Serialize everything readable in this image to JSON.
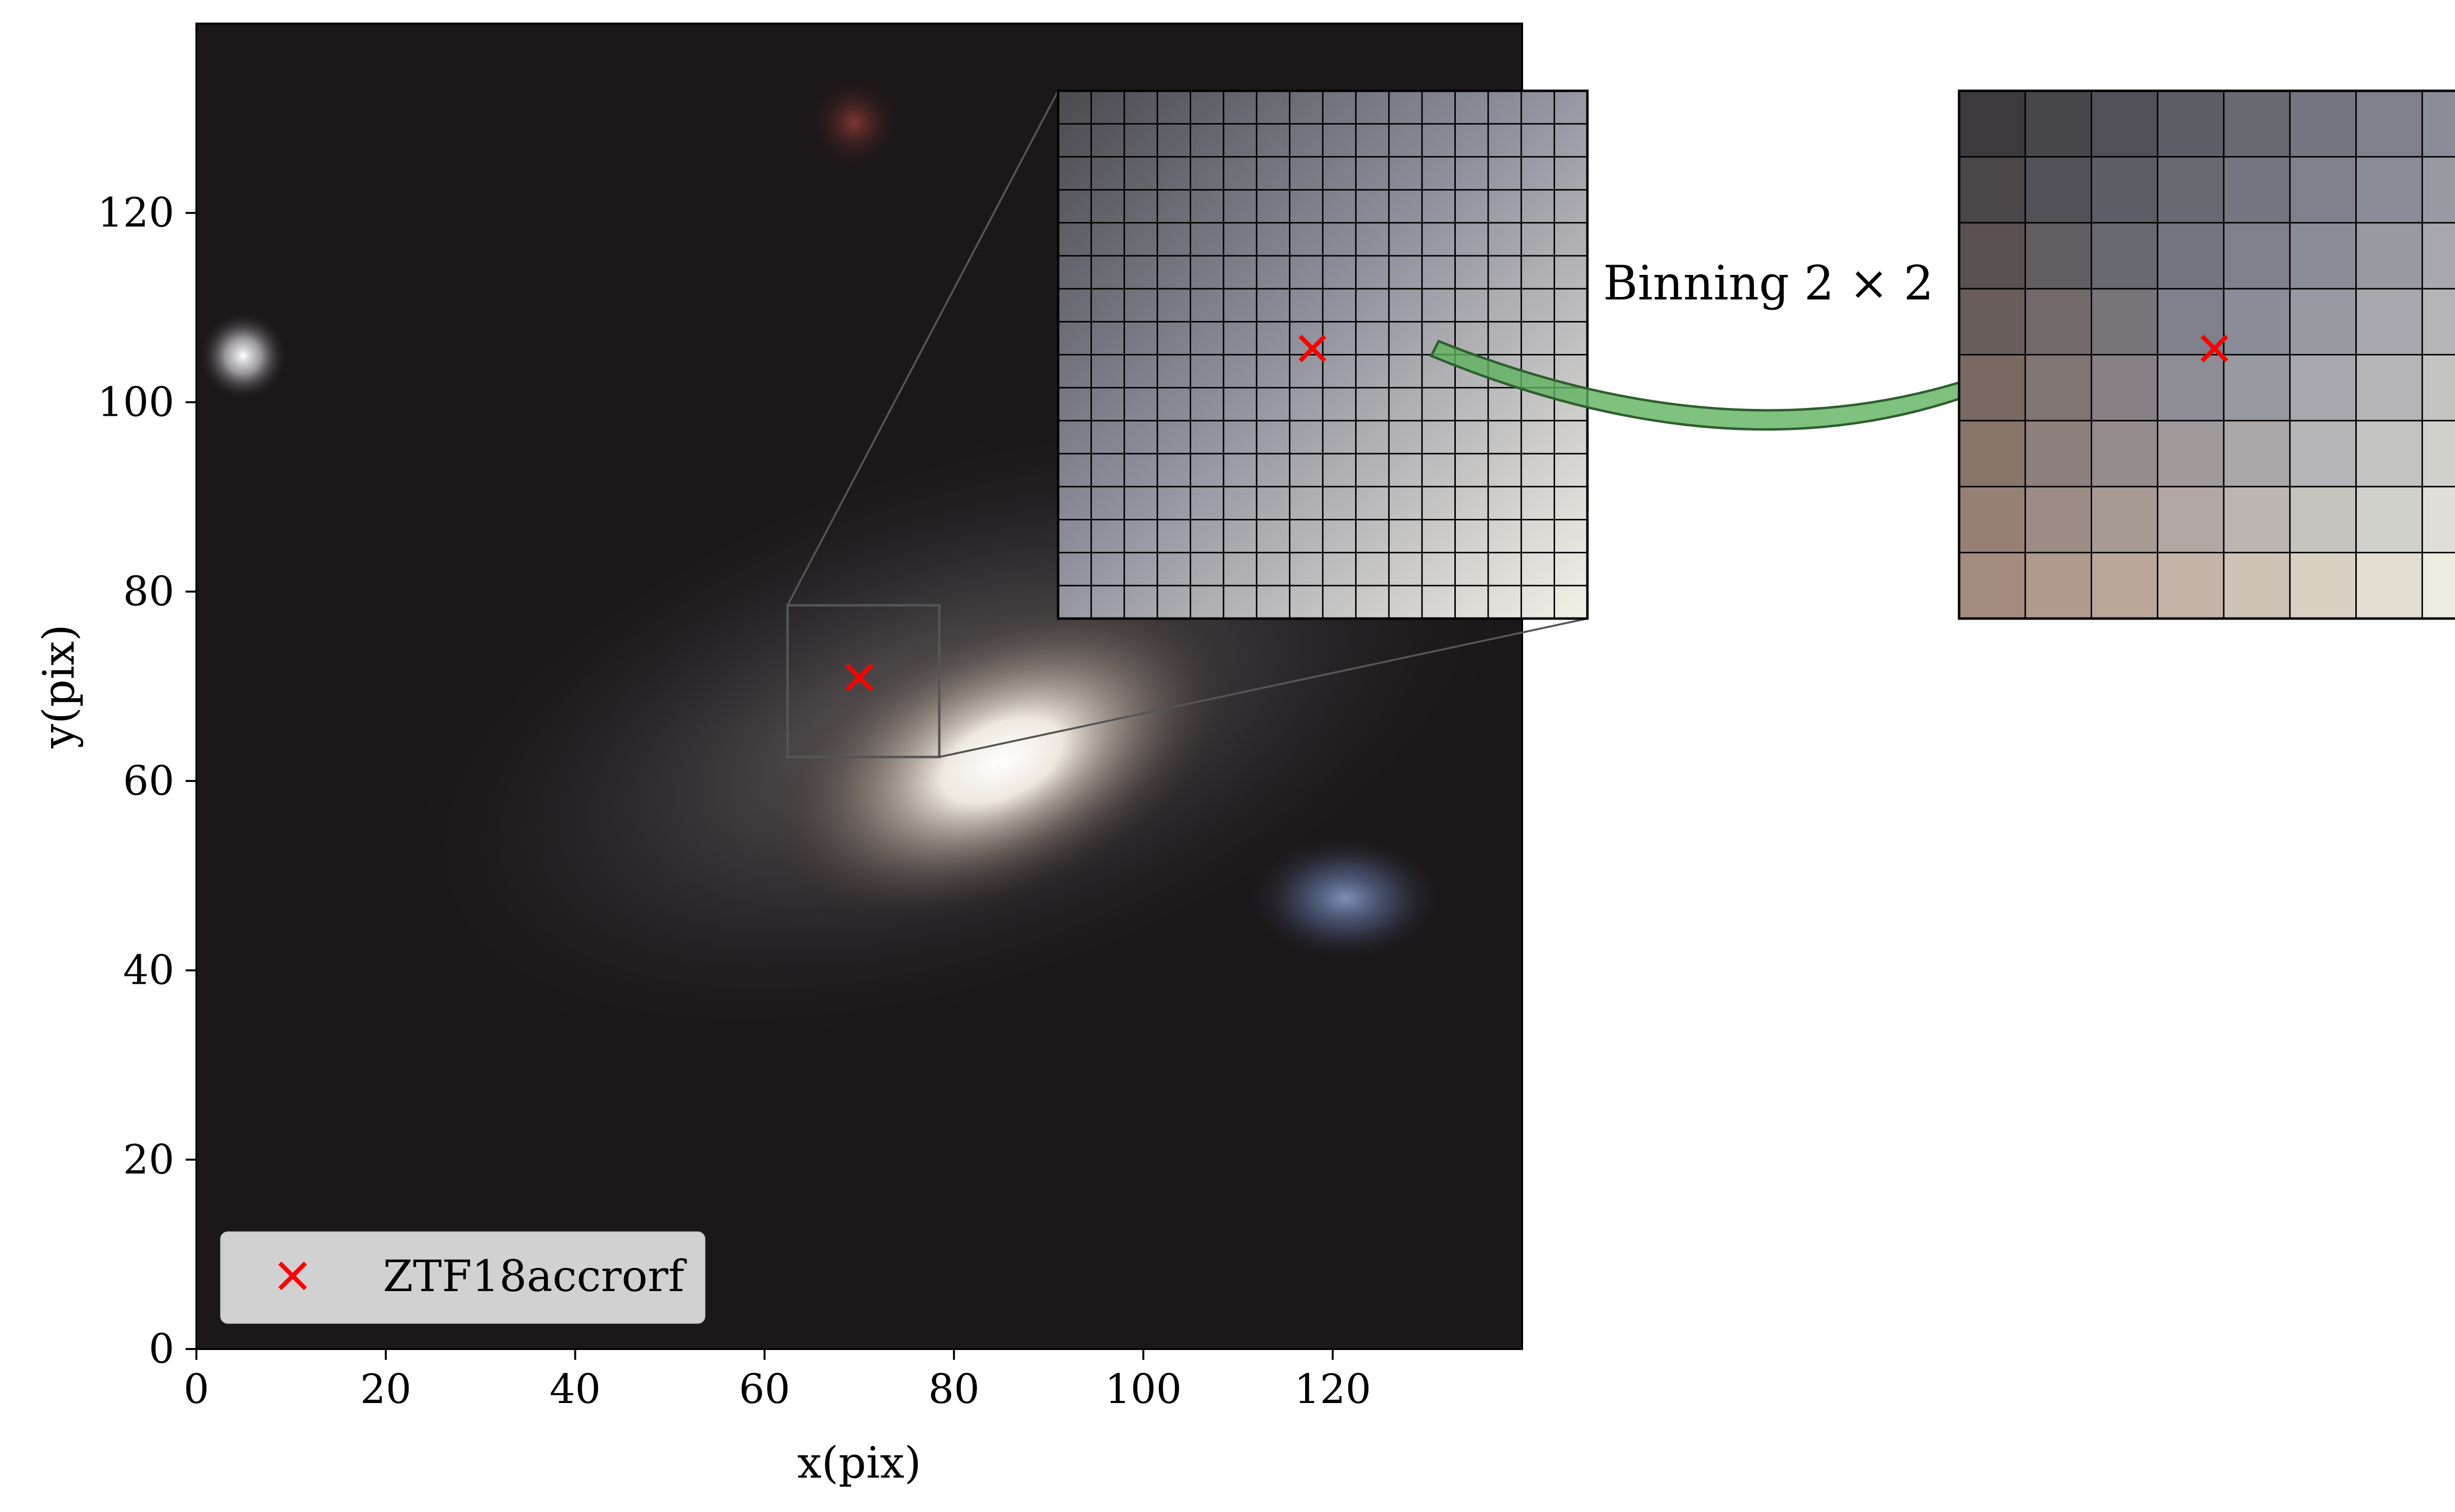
{
  "chart_data": {
    "type": "image",
    "xlabel": "x(pix)",
    "ylabel": "y(pix)",
    "xlim": [
      0,
      140
    ],
    "ylim": [
      0,
      140
    ],
    "x_ticks": [
      "0",
      "20",
      "40",
      "60",
      "80",
      "100",
      "120"
    ],
    "y_ticks": [
      "0",
      "20",
      "40",
      "60",
      "80",
      "100",
      "120"
    ],
    "legend": {
      "label": "ZTF18accrorf",
      "marker": "x",
      "color": "#ff0000",
      "placement": "lower-left"
    },
    "marker_point": {
      "x": 70,
      "y": 70
    },
    "zoom_box": {
      "x": [
        62,
        78
      ],
      "y": [
        62,
        78
      ]
    },
    "annotation": "Binning 2 × 2",
    "inset_original": {
      "grid": [
        16,
        16
      ]
    },
    "inset_binned": {
      "grid": [
        8,
        8
      ]
    },
    "arrow_color": "#4caf50"
  }
}
